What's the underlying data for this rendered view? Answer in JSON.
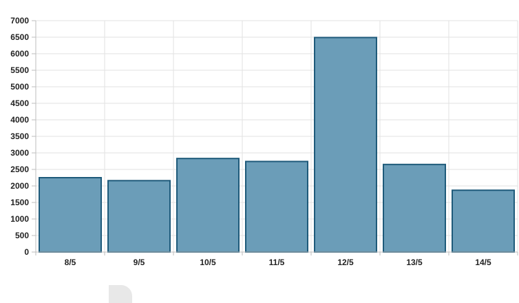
{
  "chart_data": {
    "type": "bar",
    "title": "",
    "xlabel": "",
    "ylabel": "",
    "categories": [
      "8/5",
      "9/5",
      "10/5",
      "11/5",
      "12/5",
      "13/5",
      "14/5"
    ],
    "values": [
      2250,
      2160,
      2830,
      2740,
      6490,
      2650,
      1870
    ],
    "ylim": [
      0,
      7000
    ],
    "yticks": [
      "0",
      "500",
      "1000",
      "1500",
      "2000",
      "2500",
      "3000",
      "3500",
      "4000",
      "4500",
      "5000",
      "5500",
      "6000",
      "6500",
      "7000"
    ],
    "grid": true,
    "legend": "none",
    "colors": {
      "bar_fill": "#6b9db8",
      "bar_stroke": "#1e5a7a"
    }
  }
}
